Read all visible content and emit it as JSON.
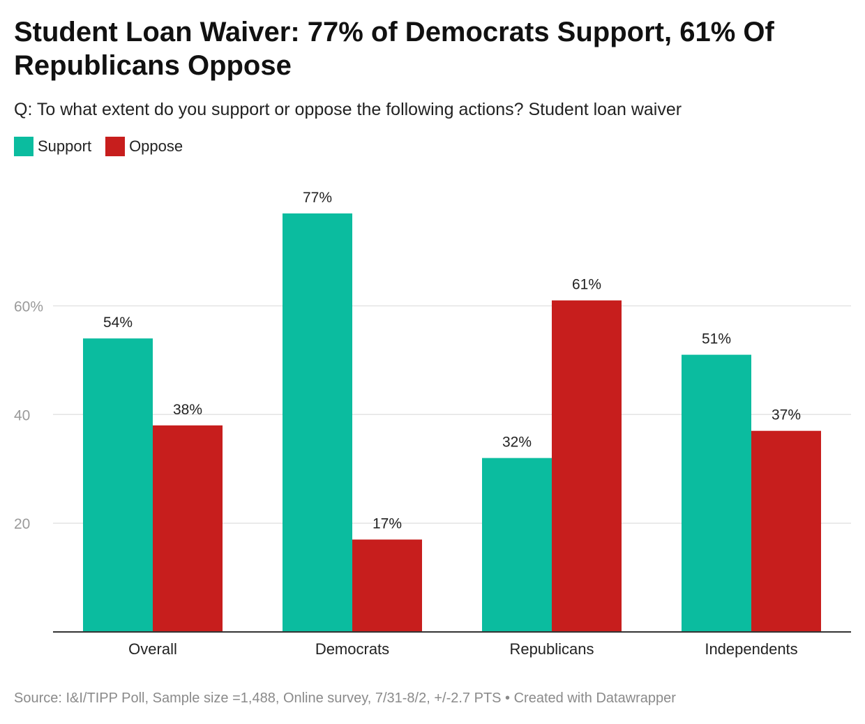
{
  "header": {
    "title": "Student Loan Waiver: 77% of Democrats Support, 61% Of Republicans Oppose",
    "subtitle": "Q: To what extent do you support or oppose the following actions? Student loan waiver"
  },
  "legend": [
    {
      "label": "Support",
      "color": "#0bbc9f"
    },
    {
      "label": "Oppose",
      "color": "#c71e1d"
    }
  ],
  "footer": {
    "source": "Source: I&I/TIPP Poll, Sample size =1,488, Online survey, 7/31-8/2, +/-2.7 PTS • Created with Datawrapper"
  },
  "chart_data": {
    "type": "bar",
    "categories": [
      "Overall",
      "Democrats",
      "Republicans",
      "Independents"
    ],
    "series": [
      {
        "name": "Support",
        "color": "#0bbc9f",
        "values": [
          54,
          77,
          32,
          51
        ],
        "labels": [
          "54%",
          "77%",
          "32%",
          "51%"
        ]
      },
      {
        "name": "Oppose",
        "color": "#c71e1d",
        "values": [
          38,
          17,
          61,
          37
        ],
        "labels": [
          "38%",
          "17%",
          "61%",
          "37%"
        ]
      }
    ],
    "yticks": [
      {
        "value": 20,
        "label": "20"
      },
      {
        "value": 40,
        "label": "40"
      },
      {
        "value": 60,
        "label": "60%"
      }
    ],
    "ylim": [
      0,
      77
    ],
    "grid": true,
    "legend_position": "top-left"
  }
}
